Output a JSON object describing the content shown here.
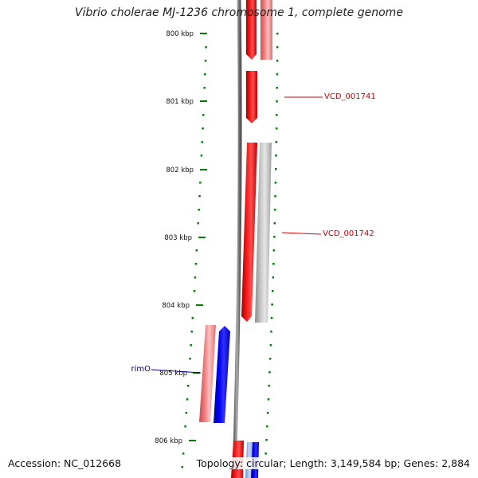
{
  "title": "Vibrio cholerae MJ-1236 chromosome 1, complete genome",
  "footer": {
    "accession": "Accession: NC_012668",
    "summary": "Topology: circular; Length: 3,149,584 bp; Genes: 2,884"
  },
  "colors": {
    "forward": "#ff0000",
    "forward_light": "#f08080",
    "reverse": "#0000ff",
    "neutral": "#b8b8b8",
    "tick": "#008000",
    "backbone": "#7a7a7a",
    "forward_label": "#cc0000",
    "reverse_label": "#00008b"
  },
  "ticks": [
    {
      "label": "800 kbp"
    },
    {
      "label": "801 kbp"
    },
    {
      "label": "802 kbp"
    },
    {
      "label": "803 kbp"
    },
    {
      "label": "804 kbp"
    },
    {
      "label": "805 kbp"
    },
    {
      "label": "806 kbp"
    }
  ],
  "gene_labels": [
    {
      "text": "VCD_001741",
      "strand": "forward"
    },
    {
      "text": "VCD_001742",
      "strand": "forward"
    },
    {
      "text": "rimO",
      "strand": "reverse"
    }
  ]
}
